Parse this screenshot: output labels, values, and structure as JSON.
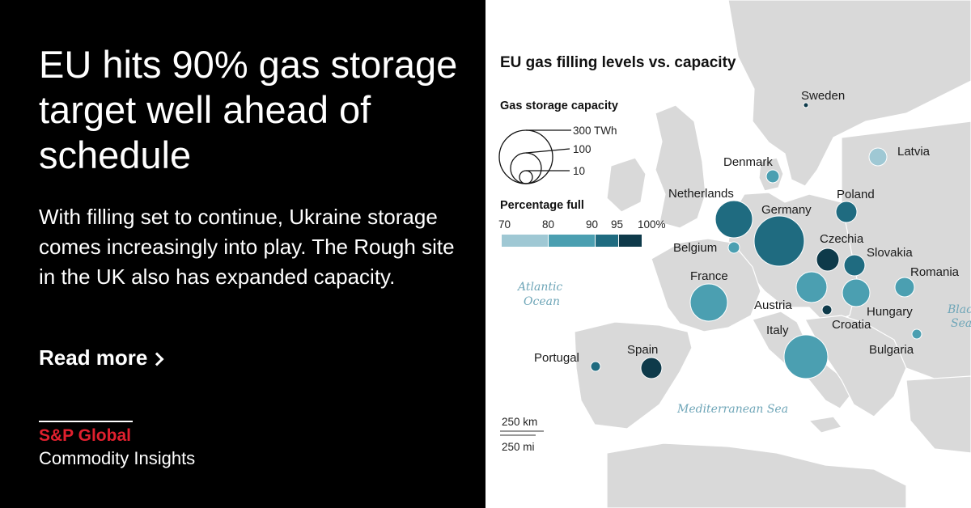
{
  "headline": "EU hits 90% gas storage target well ahead of schedule",
  "subhead": "With filling set to continue, Ukraine storage comes increasingly into play. The Rough site in the UK also has expanded capacity.",
  "read_more": "Read more",
  "brand": {
    "name": "S&P Global",
    "sub": "Commodity Insights",
    "name_color": "#e0202e"
  },
  "map": {
    "title": "EU gas filling levels vs. capacity",
    "capacity_legend": {
      "title": "Gas storage capacity",
      "labels": [
        "300 TWh",
        "100",
        "10"
      ]
    },
    "percent_legend": {
      "title": "Percentage full",
      "labels": [
        "70",
        "80",
        "90",
        "95",
        "100%"
      ],
      "colors": [
        "#9fc8d4",
        "#4b9fb1",
        "#1f6b80",
        "#0e3a4a"
      ]
    },
    "seas": {
      "atlantic_1": "Atlantic",
      "atlantic_2": "Ocean",
      "mediterranean": "Mediterranean Sea",
      "black_1": "Black",
      "black_2": "Sea"
    },
    "scale": {
      "km": "250 km",
      "mi": "250 mi"
    },
    "countries": [
      {
        "name": "Sweden",
        "color": "#0e3a4a"
      },
      {
        "name": "Latvia",
        "color": "#9fc8d4"
      },
      {
        "name": "Denmark",
        "color": "#4b9fb1"
      },
      {
        "name": "Netherlands",
        "color": "#1f6b80"
      },
      {
        "name": "Germany",
        "color": "#1f6b80"
      },
      {
        "name": "Poland",
        "color": "#1f6b80"
      },
      {
        "name": "Belgium",
        "color": "#4b9fb1"
      },
      {
        "name": "Czechia",
        "color": "#0e3a4a"
      },
      {
        "name": "Slovakia",
        "color": "#1f6b80"
      },
      {
        "name": "Romania",
        "color": "#4b9fb1"
      },
      {
        "name": "France",
        "color": "#4b9fb1"
      },
      {
        "name": "Austria",
        "color": "#4b9fb1"
      },
      {
        "name": "Hungary",
        "color": "#4b9fb1"
      },
      {
        "name": "Croatia",
        "color": "#0e3a4a"
      },
      {
        "name": "Italy",
        "color": "#4b9fb1"
      },
      {
        "name": "Bulgaria",
        "color": "#4b9fb1"
      },
      {
        "name": "Spain",
        "color": "#0e3a4a"
      },
      {
        "name": "Portugal",
        "color": "#1f6b80"
      }
    ]
  }
}
